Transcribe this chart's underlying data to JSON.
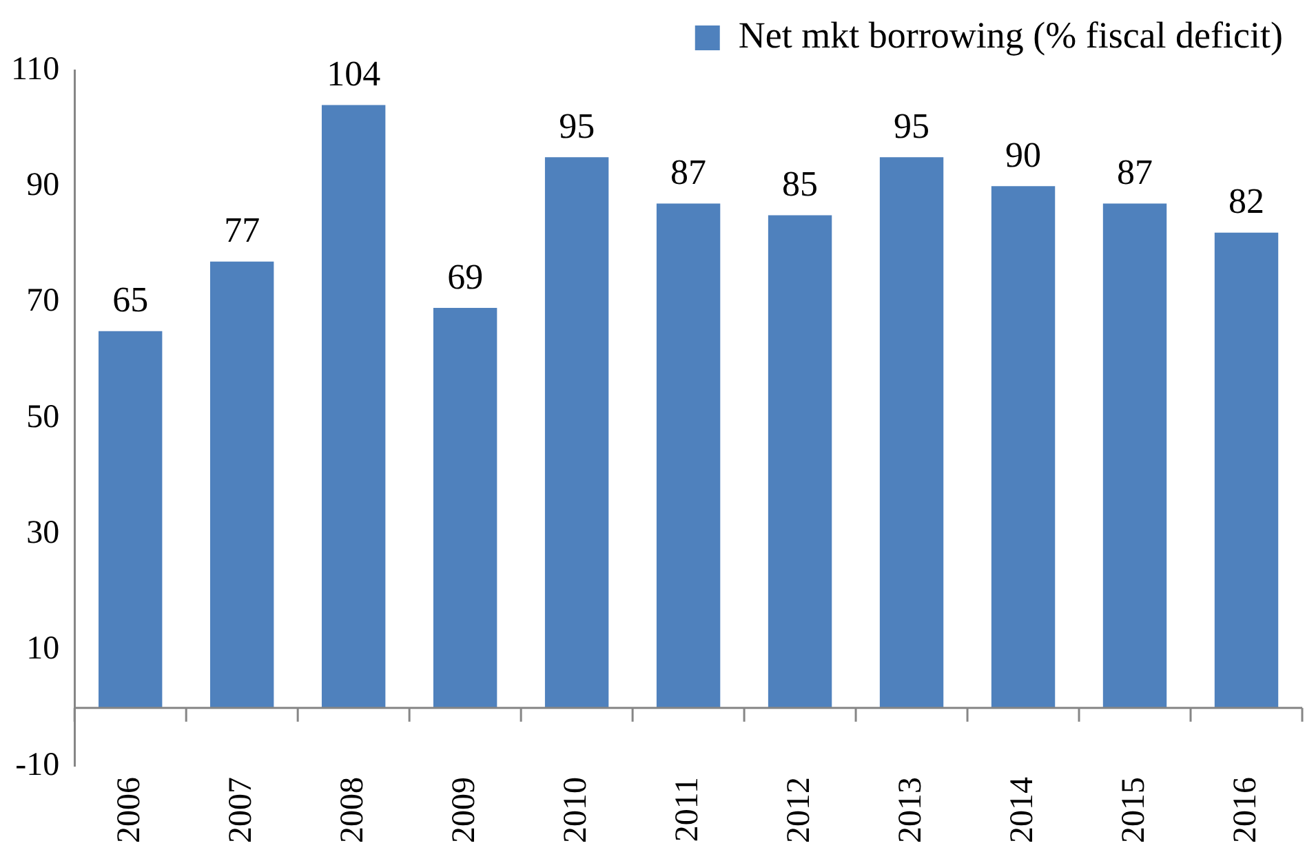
{
  "chart_data": {
    "type": "bar",
    "categories": [
      "2006",
      "2007",
      "2008",
      "2009",
      "2010",
      "2011",
      "2012",
      "2013",
      "2014",
      "2015",
      "2016"
    ],
    "series": [
      {
        "name": "Net mkt borrowing (% fiscal deficit)",
        "color": "#4f81bd",
        "values": [
          65,
          77,
          104,
          69,
          95,
          87,
          85,
          95,
          90,
          87,
          82
        ]
      }
    ],
    "ylim": [
      -10,
      110
    ],
    "yticks": [
      -10,
      10,
      30,
      50,
      70,
      90,
      110
    ],
    "grid": false,
    "legend": "top right",
    "data_labels": true
  }
}
